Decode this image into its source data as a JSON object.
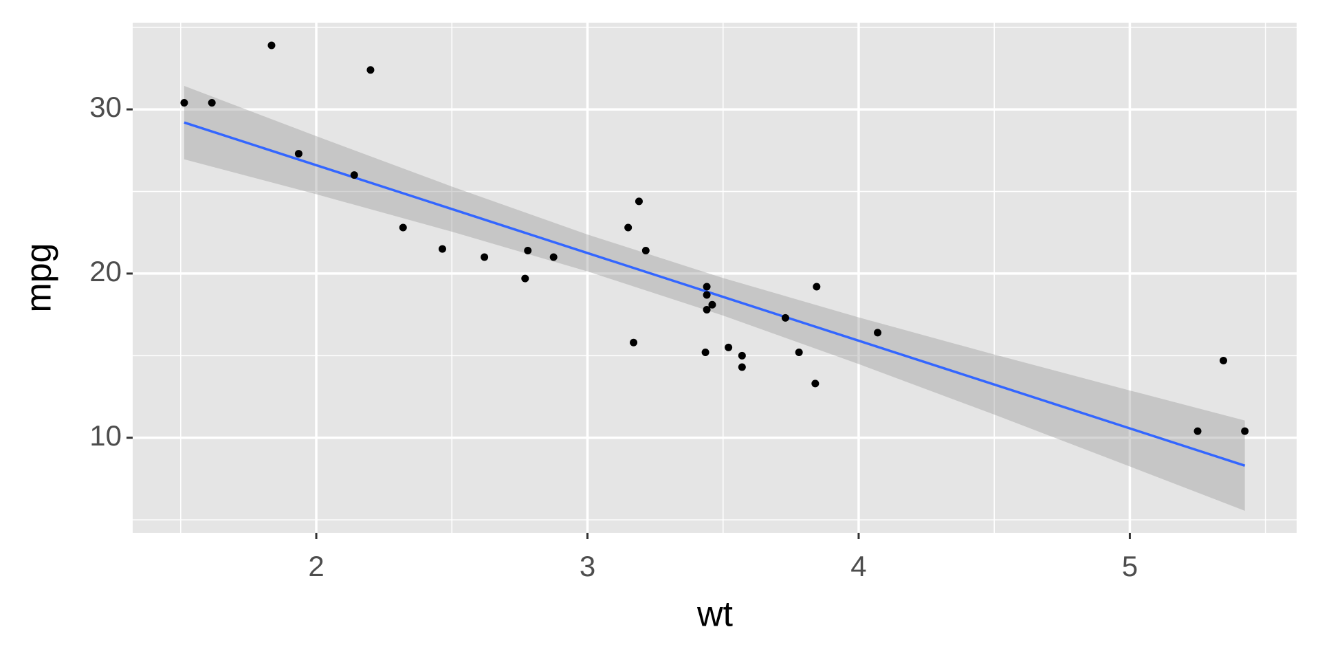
{
  "chart_data": {
    "type": "scatter",
    "x_label": "wt",
    "y_label": "mpg",
    "x": [
      2.62,
      2.875,
      2.32,
      3.215,
      3.44,
      3.46,
      3.57,
      3.19,
      3.15,
      3.44,
      3.44,
      4.07,
      3.73,
      3.78,
      5.25,
      5.424,
      5.345,
      2.2,
      1.615,
      1.835,
      2.465,
      3.52,
      3.435,
      3.84,
      3.845,
      1.935,
      2.14,
      1.513,
      3.17,
      2.77,
      3.57,
      2.78
    ],
    "values": [
      21.0,
      21.0,
      22.8,
      21.4,
      18.7,
      18.1,
      14.3,
      24.4,
      22.8,
      19.2,
      17.8,
      16.4,
      17.3,
      15.2,
      10.4,
      10.4,
      14.7,
      32.4,
      30.4,
      33.9,
      21.5,
      15.5,
      15.2,
      13.3,
      19.2,
      27.3,
      26.0,
      30.4,
      15.8,
      19.7,
      15.0,
      21.4
    ],
    "color": "#000000",
    "smooth": {
      "x": [
        1.513,
        2,
        2.5,
        3,
        3.5,
        4,
        4.5,
        5,
        5.424
      ],
      "fit": [
        29.2,
        26.6,
        23.93,
        21.25,
        18.58,
        15.91,
        13.24,
        10.57,
        8.3
      ],
      "lower": [
        26.96,
        24.83,
        22.55,
        20.13,
        17.44,
        14.49,
        11.41,
        8.25,
        5.55
      ],
      "upper": [
        31.43,
        28.37,
        25.3,
        22.38,
        19.73,
        17.33,
        15.07,
        12.88,
        11.05
      ],
      "color": "#3366FF",
      "fill": "#999999"
    },
    "xlim": [
      1.323,
      5.615
    ],
    "ylim": [
      4.21,
      35.28
    ],
    "xticks": [
      2,
      3,
      4,
      5
    ],
    "yticks": [
      10,
      20,
      30
    ],
    "xminorticks": [
      1.5,
      2.5,
      3.5,
      4.5,
      5.5
    ],
    "yminorticks": [
      5,
      15,
      25,
      35
    ],
    "grid": true
  }
}
